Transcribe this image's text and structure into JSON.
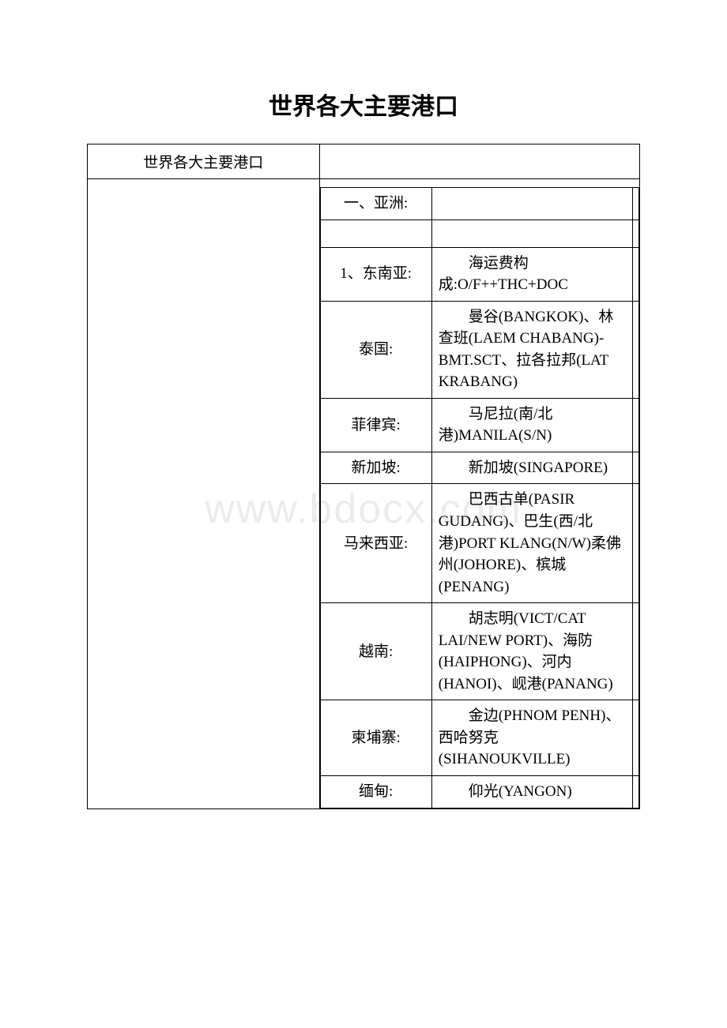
{
  "title": "世界各大主要港口",
  "header_left": "世界各大主要港口",
  "watermark": "www.bdocx.com",
  "rows": [
    {
      "label": "一、亚洲:",
      "value": ""
    },
    {
      "label": "",
      "value": ""
    },
    {
      "label": "1、东南亚:",
      "value": "海运费构成:O/F++THC+DOC",
      "indent": true
    },
    {
      "label": "泰国:",
      "value": "曼谷(BANGKOK)、林查班(LAEM CHABANG)-BMT.SCT、拉各拉邦(LAT KRABANG)",
      "indent": true
    },
    {
      "label": "菲律宾:",
      "value": "马尼拉(南/北港)MANILA(S/N)",
      "indent": true
    },
    {
      "label": "新加坡:",
      "value": "新加坡(SINGAPORE)",
      "indent": true
    },
    {
      "label": "马来西亚:",
      "value": "巴西古单(PASIR GUDANG)、巴生(西/北港)PORT KLANG(N/W)柔佛州(JOHORE)、槟城(PENANG)",
      "indent": true
    },
    {
      "label": "越南:",
      "value": "胡志明(VICT/CAT LAI/NEW PORT)、海防(HAIPHONG)、河内(HANOI)、岘港(PANANG)",
      "indent": true
    },
    {
      "label": "柬埔寨:",
      "value": "金边(PHNOM PENH)、西哈努克(SIHANOUKVILLE)",
      "indent": true
    },
    {
      "label": "缅甸:",
      "value": "仰光(YANGON)",
      "indent": true
    }
  ]
}
